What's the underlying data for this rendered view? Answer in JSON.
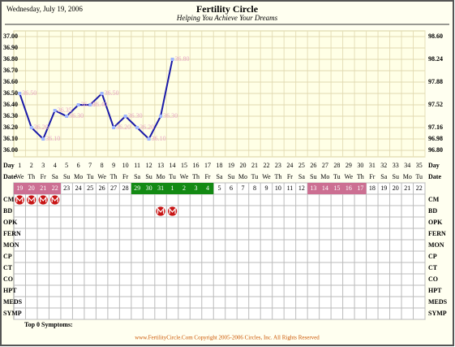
{
  "header": {
    "date": "Wednesday, July 19, 2006",
    "title": "Fertility Circle",
    "subtitle": "Helping You Achieve Your Dreams"
  },
  "chart_data": {
    "type": "line",
    "x": [
      1,
      2,
      3,
      4,
      5,
      6,
      7,
      8,
      9,
      10,
      11,
      12,
      13,
      14
    ],
    "series": [
      {
        "color": "#1a1aa8",
        "values": [
          36.5,
          36.2,
          36.1,
          36.35,
          36.3,
          36.4,
          36.4,
          36.5,
          36.2,
          36.3,
          36.2,
          36.1,
          36.3,
          36.8
        ],
        "value_labels": [
          "36.50",
          "36.20",
          "36.10",
          "36.35",
          "36.30",
          "36.40",
          "36.40",
          "36.50",
          "36.20",
          "36.30",
          "36.20",
          "36.10",
          "36.30",
          "36.80"
        ]
      }
    ],
    "x_label": "Day",
    "xlim": [
      0.5,
      35.5
    ],
    "xticks": [
      1,
      2,
      3,
      4,
      5,
      6,
      7,
      8,
      9,
      10,
      11,
      12,
      13,
      14,
      15,
      16,
      17,
      18,
      19,
      20,
      21,
      22,
      23,
      24,
      25,
      26,
      27,
      28,
      29,
      30,
      31,
      32,
      33,
      34,
      35
    ],
    "ylim": [
      36,
      37
    ],
    "yticks": [
      {
        "value": 36,
        "label": "36.00"
      },
      {
        "value": 36.1,
        "label": "36.10"
      },
      {
        "value": 36.2,
        "label": "36.20"
      },
      {
        "value": 36.3,
        "label": "36.30"
      },
      {
        "value": 36.4,
        "label": "36.40"
      },
      {
        "value": 36.5,
        "label": "36.50"
      },
      {
        "value": 36.6,
        "label": "36.60"
      },
      {
        "value": 36.7,
        "label": "36.70"
      },
      {
        "value": 36.8,
        "label": "36.80"
      },
      {
        "value": 36.9,
        "label": "36.90"
      },
      {
        "value": 37,
        "label": "37.00"
      }
    ],
    "y2lim": [
      96.8,
      98.6
    ],
    "y2ticks": [
      {
        "value": 98.6,
        "label": "98.60"
      },
      {
        "value": 98.24,
        "label": "98.24"
      },
      {
        "value": 97.88,
        "label": "97.88"
      },
      {
        "value": 97.52,
        "label": "97.52"
      },
      {
        "value": 97.16,
        "label": "97.16"
      },
      {
        "value": 96.98,
        "label": "96.98"
      },
      {
        "value": 96.8,
        "label": "96.80"
      }
    ],
    "grid": true
  },
  "cycle": {
    "date_label": "Date",
    "weekdays": [
      "We",
      "Th",
      "Fr",
      "Sa",
      "Su",
      "Mo",
      "Tu",
      "We",
      "Th",
      "Fr",
      "Sa",
      "Su",
      "Mo",
      "Tu",
      "We",
      "Th",
      "Fr",
      "Sa",
      "Su",
      "Mo",
      "Tu",
      "We",
      "Th",
      "Fr",
      "Sa",
      "Su",
      "Mo",
      "Tu",
      "We",
      "Th",
      "Fr",
      "Sa",
      "Su",
      "Mo",
      "Tu"
    ],
    "dates": [
      19,
      20,
      21,
      22,
      23,
      24,
      25,
      26,
      27,
      28,
      29,
      30,
      31,
      1,
      2,
      3,
      4,
      5,
      6,
      7,
      8,
      9,
      10,
      11,
      12,
      13,
      14,
      15,
      16,
      17,
      18,
      19,
      20,
      21,
      22
    ],
    "highlights": [
      {
        "from_day": 1,
        "to_day": 4,
        "color": "#cc6f92"
      },
      {
        "from_day": 11,
        "to_day": 17,
        "color": "#138a13"
      },
      {
        "from_day": 26,
        "to_day": 30,
        "color": "#cc6f92"
      }
    ]
  },
  "rows": [
    {
      "label": "CM",
      "marks": [
        1,
        2,
        3,
        4
      ]
    },
    {
      "label": "BD",
      "marks": [
        13,
        14
      ]
    },
    {
      "label": "OPK",
      "marks": []
    },
    {
      "label": "FERN",
      "marks": []
    },
    {
      "label": "MON",
      "marks": []
    },
    {
      "label": "CP",
      "marks": []
    },
    {
      "label": "CT",
      "marks": []
    },
    {
      "label": "CO",
      "marks": []
    },
    {
      "label": "HPT",
      "marks": []
    },
    {
      "label": "MEDS",
      "marks": []
    },
    {
      "label": "SYMP",
      "marks": []
    }
  ],
  "footer": {
    "symptoms": "Top 0 Symptoms:",
    "copyright": "www.FertilityCircle.Com Copyright 2005-2006 Circles, Inc. All Rights Reserved"
  }
}
